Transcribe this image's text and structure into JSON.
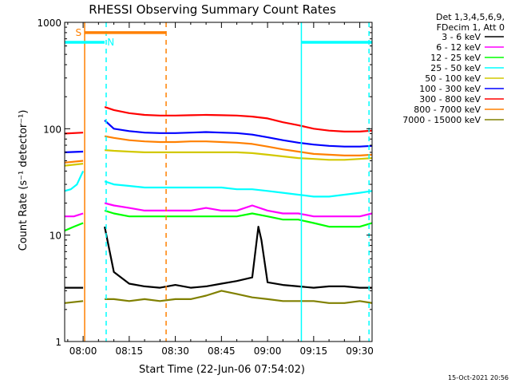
{
  "chart_data": {
    "type": "line",
    "title": "RHESSI Observing Summary Count Rates",
    "xlabel": "Start Time (22-Jun-06 07:54:02)",
    "ylabel": "Count Rate (s⁻¹ detector⁻¹)",
    "yscale": "log",
    "ylim": [
      1,
      1000
    ],
    "xlim_minutes": [
      474,
      574
    ],
    "x_ticks": [
      {
        "label": "08:00",
        "minutes": 480
      },
      {
        "label": "08:15",
        "minutes": 495
      },
      {
        "label": "08:30",
        "minutes": 510
      },
      {
        "label": "08:45",
        "minutes": 525
      },
      {
        "label": "09:00",
        "minutes": 540
      },
      {
        "label": "09:15",
        "minutes": 555
      },
      {
        "label": "09:30",
        "minutes": 570
      }
    ],
    "y_ticks": [
      {
        "label": "1",
        "value": 1
      },
      {
        "label": "10",
        "value": 10
      },
      {
        "label": "100",
        "value": 100
      },
      {
        "label": "1000",
        "value": 1000
      }
    ],
    "legend_header": [
      "Det 1,3,4,5,6,9,",
      "FDecim 1, Att 0"
    ],
    "legend_position": "right",
    "timestamp": "15-Oct-2021 20:56",
    "segments": [
      [
        474,
        480.2
      ],
      [
        486.5,
        574
      ]
    ],
    "gap_marker_minutes": [
      480.5,
      491.5
    ],
    "series": [
      {
        "name": "3 - 6 keV",
        "color": "#000000",
        "x": [
          474,
          480,
          487,
          490,
          495,
          500,
          505,
          510,
          515,
          520,
          525,
          530,
          535,
          537,
          538,
          540,
          545,
          550,
          555,
          560,
          565,
          570,
          574
        ],
        "y": [
          3.2,
          3.2,
          12,
          4.5,
          3.5,
          3.3,
          3.2,
          3.4,
          3.2,
          3.3,
          3.5,
          3.7,
          4,
          12,
          9,
          3.6,
          3.4,
          3.3,
          3.2,
          3.3,
          3.3,
          3.2,
          3.2
        ]
      },
      {
        "name": "6 - 12 keV",
        "color": "#ff00ff",
        "x": [
          474,
          477,
          480,
          487,
          490,
          495,
          500,
          505,
          510,
          515,
          520,
          525,
          530,
          535,
          540,
          545,
          550,
          555,
          560,
          565,
          570,
          574
        ],
        "y": [
          15,
          15,
          16,
          20,
          19,
          18,
          17,
          17,
          17,
          17,
          18,
          17,
          17,
          19,
          17,
          16,
          16,
          15,
          15,
          15,
          15,
          16
        ]
      },
      {
        "name": "12 - 25 keV",
        "color": "#00ff00",
        "x": [
          474,
          477,
          480,
          487,
          490,
          495,
          500,
          505,
          510,
          515,
          520,
          525,
          530,
          535,
          540,
          545,
          550,
          555,
          560,
          565,
          570,
          574
        ],
        "y": [
          11,
          12,
          13,
          17,
          16,
          15,
          15,
          15,
          15,
          15,
          15,
          15,
          15,
          16,
          15,
          14,
          14,
          13,
          12,
          12,
          12,
          13
        ]
      },
      {
        "name": "25 - 50 keV",
        "color": "#00ffff",
        "x": [
          474,
          476,
          478,
          480,
          487,
          490,
          495,
          500,
          505,
          510,
          515,
          520,
          525,
          530,
          535,
          540,
          545,
          550,
          555,
          560,
          565,
          570,
          574
        ],
        "y": [
          26,
          27,
          30,
          40,
          32,
          30,
          29,
          28,
          28,
          28,
          28,
          28,
          28,
          27,
          27,
          26,
          25,
          24,
          23,
          23,
          24,
          25,
          26
        ]
      },
      {
        "name": "50 - 100 keV",
        "color": "#ffff00",
        "stroke": "#d2c800",
        "x": [
          474,
          480,
          487,
          490,
          495,
          500,
          505,
          510,
          515,
          520,
          525,
          530,
          535,
          540,
          545,
          550,
          555,
          560,
          565,
          570,
          574
        ],
        "y": [
          45,
          47,
          63,
          62,
          61,
          60,
          60,
          60,
          60,
          60,
          60,
          60,
          59,
          57,
          55,
          53,
          52,
          51,
          51,
          52,
          53
        ]
      },
      {
        "name": "100 - 300 keV",
        "color": "#0000ff",
        "x": [
          474,
          480,
          487,
          490,
          495,
          500,
          505,
          510,
          515,
          520,
          525,
          530,
          535,
          540,
          545,
          550,
          555,
          560,
          565,
          570,
          574
        ],
        "y": [
          60,
          61,
          120,
          100,
          95,
          92,
          91,
          91,
          92,
          93,
          92,
          91,
          88,
          83,
          78,
          74,
          71,
          69,
          68,
          68,
          69
        ]
      },
      {
        "name": "300 - 800 keV",
        "color": "#ff0000",
        "x": [
          474,
          480,
          487,
          490,
          495,
          500,
          505,
          510,
          515,
          520,
          525,
          530,
          535,
          540,
          545,
          550,
          555,
          560,
          565,
          570,
          574
        ],
        "y": [
          90,
          92,
          160,
          150,
          140,
          135,
          133,
          133,
          134,
          135,
          134,
          133,
          130,
          125,
          115,
          108,
          100,
          96,
          94,
          94,
          96
        ]
      },
      {
        "name": "800 - 7000 keV",
        "color": "#ff8000",
        "x": [
          474,
          480,
          487,
          490,
          495,
          500,
          505,
          510,
          515,
          520,
          525,
          530,
          535,
          540,
          545,
          550,
          555,
          560,
          565,
          570,
          574
        ],
        "y": [
          48,
          50,
          85,
          82,
          78,
          76,
          75,
          75,
          76,
          76,
          75,
          74,
          72,
          68,
          64,
          61,
          58,
          57,
          56,
          56,
          57
        ]
      },
      {
        "name": "7000 - 15000 keV",
        "color": "#808000",
        "x": [
          474,
          480,
          487,
          490,
          495,
          500,
          505,
          510,
          515,
          520,
          525,
          530,
          535,
          540,
          545,
          550,
          555,
          560,
          565,
          570,
          574
        ],
        "y": [
          2.3,
          2.4,
          2.5,
          2.5,
          2.4,
          2.5,
          2.4,
          2.5,
          2.5,
          2.7,
          3,
          2.8,
          2.6,
          2.5,
          2.4,
          2.4,
          2.4,
          2.3,
          2.3,
          2.4,
          2.3
        ]
      }
    ],
    "flag_bars": [
      {
        "label": "S",
        "color": "#ff8000",
        "y": 800,
        "from": 480.5,
        "to": 507,
        "label_at": 478.5
      },
      {
        "label": "N",
        "color": "#00ffff",
        "y": 650,
        "from": 474,
        "to": 487,
        "label_at": 489
      },
      {
        "label": "",
        "color": "#00ffff",
        "y": 650,
        "from": 551,
        "to": 574,
        "label_at": null
      }
    ],
    "vlines": [
      {
        "x": 480.5,
        "color": "#ff8000",
        "style": "solid"
      },
      {
        "x": 487.5,
        "color": "#00ffff",
        "style": "dashed"
      },
      {
        "x": 507,
        "color": "#ff8000",
        "style": "dashed"
      },
      {
        "x": 551,
        "color": "#00ffff",
        "style": "solid"
      },
      {
        "x": 573,
        "color": "#00ffff",
        "style": "dashed"
      }
    ]
  }
}
